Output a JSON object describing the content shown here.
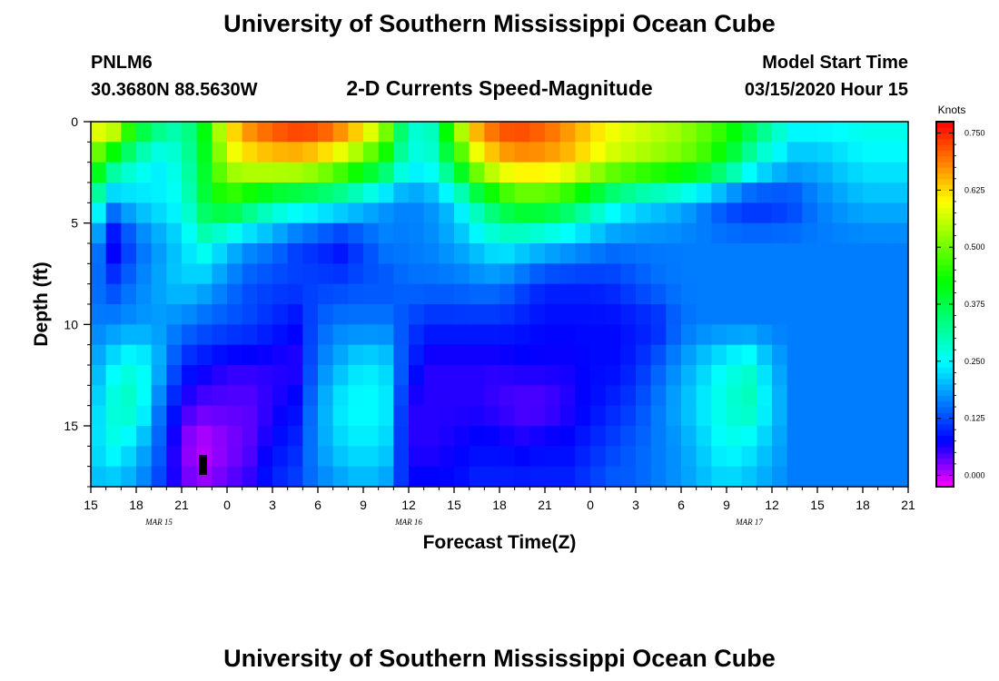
{
  "chart_data": {
    "type": "heatmap",
    "title": "University of Southern Mississippi Ocean Cube",
    "footer_title": "University of Southern Mississippi Ocean Cube",
    "station": "PNLM6",
    "coordinates": "30.3680N 88.5630W",
    "subtitle": "2-D Currents Speed-Magnitude",
    "model_start_label": "Model Start Time",
    "model_start_value": "03/15/2020 Hour 15",
    "xlabel": "Forecast Time(Z)",
    "ylabel": "Depth (ft)",
    "x_ticks": [
      "15",
      "18",
      "21",
      "0",
      "3",
      "6",
      "9",
      "12",
      "15",
      "18",
      "21",
      "0",
      "3",
      "6",
      "9",
      "12",
      "15",
      "18",
      "21"
    ],
    "date_labels": [
      {
        "text": "MAR 15",
        "hour": 4.5
      },
      {
        "text": "MAR 16",
        "hour": 21
      },
      {
        "text": "MAR 17",
        "hour": 43.5
      }
    ],
    "xlim": [
      0,
      54
    ],
    "ylim": [
      0,
      18
    ],
    "y_ticks": [
      "0",
      "5",
      "10",
      "15"
    ],
    "y_tick_values": [
      0,
      5,
      10,
      15
    ],
    "colorbar": {
      "label": "Knots",
      "min": -0.025,
      "max": 0.775,
      "tick_labels": [
        "0.000",
        "0.125",
        "0.250",
        "0.375",
        "0.500",
        "0.625",
        "0.750"
      ],
      "tick_values": [
        0,
        0.125,
        0.25,
        0.375,
        0.5,
        0.625,
        0.75
      ]
    },
    "hours": [
      0,
      1.5,
      3,
      4.5,
      6,
      7.5,
      9,
      10.5,
      12,
      13.5,
      15,
      16.5,
      18,
      19.5,
      21,
      22.5,
      24,
      25.5,
      27,
      28.5,
      30,
      31.5,
      33,
      34.5,
      36,
      37.5,
      39,
      40.5,
      42,
      43.5,
      45,
      46.5,
      48,
      49.5,
      51,
      52.5,
      54
    ],
    "depths": [
      0,
      2,
      4,
      6,
      8,
      10,
      12,
      14,
      16,
      18
    ],
    "speed": [
      [
        0.62,
        0.62,
        0.44,
        0.36,
        0.3,
        0.42,
        0.62,
        0.7,
        0.74,
        0.76,
        0.76,
        0.72,
        0.66,
        0.54,
        0.28,
        0.3,
        0.52,
        0.68,
        0.74,
        0.74,
        0.72,
        0.68,
        0.64,
        0.6,
        0.58,
        0.56,
        0.54,
        0.5,
        0.46,
        0.4,
        0.32,
        0.26,
        0.26,
        0.26,
        0.27,
        0.27,
        0.27
      ],
      [
        0.5,
        0.36,
        0.28,
        0.24,
        0.28,
        0.4,
        0.56,
        0.6,
        0.62,
        0.62,
        0.6,
        0.54,
        0.48,
        0.4,
        0.26,
        0.28,
        0.4,
        0.56,
        0.64,
        0.66,
        0.66,
        0.64,
        0.6,
        0.56,
        0.54,
        0.52,
        0.5,
        0.46,
        0.4,
        0.3,
        0.24,
        0.2,
        0.2,
        0.22,
        0.24,
        0.24,
        0.24
      ],
      [
        0.32,
        0.18,
        0.22,
        0.24,
        0.26,
        0.38,
        0.44,
        0.38,
        0.32,
        0.3,
        0.28,
        0.26,
        0.22,
        0.18,
        0.16,
        0.18,
        0.22,
        0.32,
        0.4,
        0.44,
        0.44,
        0.4,
        0.34,
        0.28,
        0.24,
        0.22,
        0.2,
        0.16,
        0.12,
        0.1,
        0.1,
        0.12,
        0.16,
        0.18,
        0.2,
        0.2,
        0.2
      ],
      [
        0.2,
        0.06,
        0.14,
        0.18,
        0.22,
        0.28,
        0.22,
        0.18,
        0.16,
        0.12,
        0.1,
        0.08,
        0.12,
        0.16,
        0.16,
        0.17,
        0.19,
        0.22,
        0.26,
        0.24,
        0.22,
        0.2,
        0.18,
        0.16,
        0.16,
        0.16,
        0.16,
        0.16,
        0.16,
        0.16,
        0.16,
        0.16,
        0.16,
        0.16,
        0.16,
        0.16,
        0.16
      ],
      [
        0.16,
        0.12,
        0.16,
        0.19,
        0.22,
        0.2,
        0.16,
        0.13,
        0.12,
        0.12,
        0.12,
        0.12,
        0.13,
        0.13,
        0.15,
        0.15,
        0.15,
        0.16,
        0.16,
        0.13,
        0.1,
        0.1,
        0.1,
        0.11,
        0.13,
        0.15,
        0.16,
        0.16,
        0.16,
        0.16,
        0.16,
        0.16,
        0.16,
        0.16,
        0.16,
        0.16,
        0.16
      ],
      [
        0.16,
        0.17,
        0.18,
        0.18,
        0.16,
        0.14,
        0.13,
        0.12,
        0.1,
        0.08,
        0.14,
        0.16,
        0.16,
        0.16,
        0.12,
        0.1,
        0.1,
        0.1,
        0.1,
        0.09,
        0.08,
        0.08,
        0.08,
        0.08,
        0.09,
        0.1,
        0.15,
        0.16,
        0.16,
        0.16,
        0.16,
        0.16,
        0.16,
        0.16,
        0.16,
        0.16,
        0.16
      ],
      [
        0.18,
        0.24,
        0.28,
        0.2,
        0.1,
        0.08,
        0.06,
        0.06,
        0.06,
        0.06,
        0.16,
        0.2,
        0.24,
        0.22,
        0.1,
        0.06,
        0.06,
        0.06,
        0.06,
        0.07,
        0.07,
        0.07,
        0.08,
        0.08,
        0.1,
        0.14,
        0.18,
        0.22,
        0.26,
        0.28,
        0.2,
        0.16,
        0.16,
        0.16,
        0.16,
        0.16,
        0.16
      ],
      [
        0.2,
        0.28,
        0.3,
        0.16,
        0.06,
        0.04,
        0.04,
        0.04,
        0.06,
        0.08,
        0.18,
        0.24,
        0.26,
        0.24,
        0.06,
        0.06,
        0.06,
        0.06,
        0.05,
        0.04,
        0.04,
        0.06,
        0.08,
        0.1,
        0.12,
        0.16,
        0.2,
        0.24,
        0.28,
        0.3,
        0.22,
        0.16,
        0.16,
        0.16,
        0.16,
        0.16,
        0.16
      ],
      [
        0.22,
        0.26,
        0.22,
        0.14,
        0.02,
        0.0,
        0.02,
        0.04,
        0.08,
        0.1,
        0.18,
        0.22,
        0.24,
        0.22,
        0.06,
        0.06,
        0.07,
        0.08,
        0.08,
        0.07,
        0.08,
        0.08,
        0.1,
        0.12,
        0.14,
        0.16,
        0.18,
        0.22,
        0.26,
        0.24,
        0.2,
        0.16,
        0.16,
        0.16,
        0.16,
        0.16,
        0.16
      ],
      [
        0.2,
        0.2,
        0.18,
        0.12,
        0.04,
        0.02,
        0.04,
        0.06,
        0.1,
        0.12,
        0.16,
        0.18,
        0.2,
        0.18,
        0.08,
        0.08,
        0.08,
        0.1,
        0.1,
        0.1,
        0.1,
        0.1,
        0.12,
        0.14,
        0.14,
        0.16,
        0.18,
        0.2,
        0.22,
        0.2,
        0.18,
        0.16,
        0.16,
        0.16,
        0.16,
        0.16,
        0.16
      ]
    ]
  }
}
